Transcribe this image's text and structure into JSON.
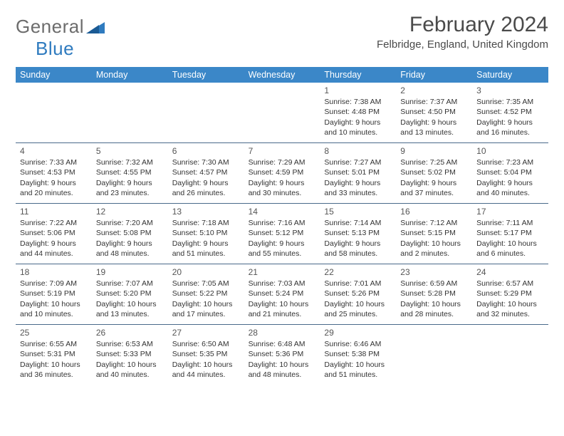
{
  "brand": {
    "word1": "General",
    "word2": "Blue"
  },
  "title": "February 2024",
  "location": "Felbridge, England, United Kingdom",
  "colors": {
    "header_bg": "#3b87c8",
    "header_text": "#ffffff",
    "rule": "#4a6a8a",
    "body_text": "#333333",
    "title_text": "#4a4a4a",
    "logo_grey": "#6c6c6c",
    "logo_blue": "#2f7bbf",
    "background": "#ffffff"
  },
  "typography": {
    "title_fontsize": 30,
    "location_fontsize": 15,
    "dayheader_fontsize": 12.5,
    "daynum_fontsize": 12,
    "cell_fontsize": 10.5
  },
  "dayNames": [
    "Sunday",
    "Monday",
    "Tuesday",
    "Wednesday",
    "Thursday",
    "Friday",
    "Saturday"
  ],
  "weeks": [
    [
      null,
      null,
      null,
      null,
      {
        "n": "1",
        "sunrise": "7:38 AM",
        "sunset": "4:48 PM",
        "daylight": "9 hours and 10 minutes."
      },
      {
        "n": "2",
        "sunrise": "7:37 AM",
        "sunset": "4:50 PM",
        "daylight": "9 hours and 13 minutes."
      },
      {
        "n": "3",
        "sunrise": "7:35 AM",
        "sunset": "4:52 PM",
        "daylight": "9 hours and 16 minutes."
      }
    ],
    [
      {
        "n": "4",
        "sunrise": "7:33 AM",
        "sunset": "4:53 PM",
        "daylight": "9 hours and 20 minutes."
      },
      {
        "n": "5",
        "sunrise": "7:32 AM",
        "sunset": "4:55 PM",
        "daylight": "9 hours and 23 minutes."
      },
      {
        "n": "6",
        "sunrise": "7:30 AM",
        "sunset": "4:57 PM",
        "daylight": "9 hours and 26 minutes."
      },
      {
        "n": "7",
        "sunrise": "7:29 AM",
        "sunset": "4:59 PM",
        "daylight": "9 hours and 30 minutes."
      },
      {
        "n": "8",
        "sunrise": "7:27 AM",
        "sunset": "5:01 PM",
        "daylight": "9 hours and 33 minutes."
      },
      {
        "n": "9",
        "sunrise": "7:25 AM",
        "sunset": "5:02 PM",
        "daylight": "9 hours and 37 minutes."
      },
      {
        "n": "10",
        "sunrise": "7:23 AM",
        "sunset": "5:04 PM",
        "daylight": "9 hours and 40 minutes."
      }
    ],
    [
      {
        "n": "11",
        "sunrise": "7:22 AM",
        "sunset": "5:06 PM",
        "daylight": "9 hours and 44 minutes."
      },
      {
        "n": "12",
        "sunrise": "7:20 AM",
        "sunset": "5:08 PM",
        "daylight": "9 hours and 48 minutes."
      },
      {
        "n": "13",
        "sunrise": "7:18 AM",
        "sunset": "5:10 PM",
        "daylight": "9 hours and 51 minutes."
      },
      {
        "n": "14",
        "sunrise": "7:16 AM",
        "sunset": "5:12 PM",
        "daylight": "9 hours and 55 minutes."
      },
      {
        "n": "15",
        "sunrise": "7:14 AM",
        "sunset": "5:13 PM",
        "daylight": "9 hours and 58 minutes."
      },
      {
        "n": "16",
        "sunrise": "7:12 AM",
        "sunset": "5:15 PM",
        "daylight": "10 hours and 2 minutes."
      },
      {
        "n": "17",
        "sunrise": "7:11 AM",
        "sunset": "5:17 PM",
        "daylight": "10 hours and 6 minutes."
      }
    ],
    [
      {
        "n": "18",
        "sunrise": "7:09 AM",
        "sunset": "5:19 PM",
        "daylight": "10 hours and 10 minutes."
      },
      {
        "n": "19",
        "sunrise": "7:07 AM",
        "sunset": "5:20 PM",
        "daylight": "10 hours and 13 minutes."
      },
      {
        "n": "20",
        "sunrise": "7:05 AM",
        "sunset": "5:22 PM",
        "daylight": "10 hours and 17 minutes."
      },
      {
        "n": "21",
        "sunrise": "7:03 AM",
        "sunset": "5:24 PM",
        "daylight": "10 hours and 21 minutes."
      },
      {
        "n": "22",
        "sunrise": "7:01 AM",
        "sunset": "5:26 PM",
        "daylight": "10 hours and 25 minutes."
      },
      {
        "n": "23",
        "sunrise": "6:59 AM",
        "sunset": "5:28 PM",
        "daylight": "10 hours and 28 minutes."
      },
      {
        "n": "24",
        "sunrise": "6:57 AM",
        "sunset": "5:29 PM",
        "daylight": "10 hours and 32 minutes."
      }
    ],
    [
      {
        "n": "25",
        "sunrise": "6:55 AM",
        "sunset": "5:31 PM",
        "daylight": "10 hours and 36 minutes."
      },
      {
        "n": "26",
        "sunrise": "6:53 AM",
        "sunset": "5:33 PM",
        "daylight": "10 hours and 40 minutes."
      },
      {
        "n": "27",
        "sunrise": "6:50 AM",
        "sunset": "5:35 PM",
        "daylight": "10 hours and 44 minutes."
      },
      {
        "n": "28",
        "sunrise": "6:48 AM",
        "sunset": "5:36 PM",
        "daylight": "10 hours and 48 minutes."
      },
      {
        "n": "29",
        "sunrise": "6:46 AM",
        "sunset": "5:38 PM",
        "daylight": "10 hours and 51 minutes."
      },
      null,
      null
    ]
  ],
  "labels": {
    "sunrise": "Sunrise: ",
    "sunset": "Sunset: ",
    "daylight": "Daylight: "
  }
}
